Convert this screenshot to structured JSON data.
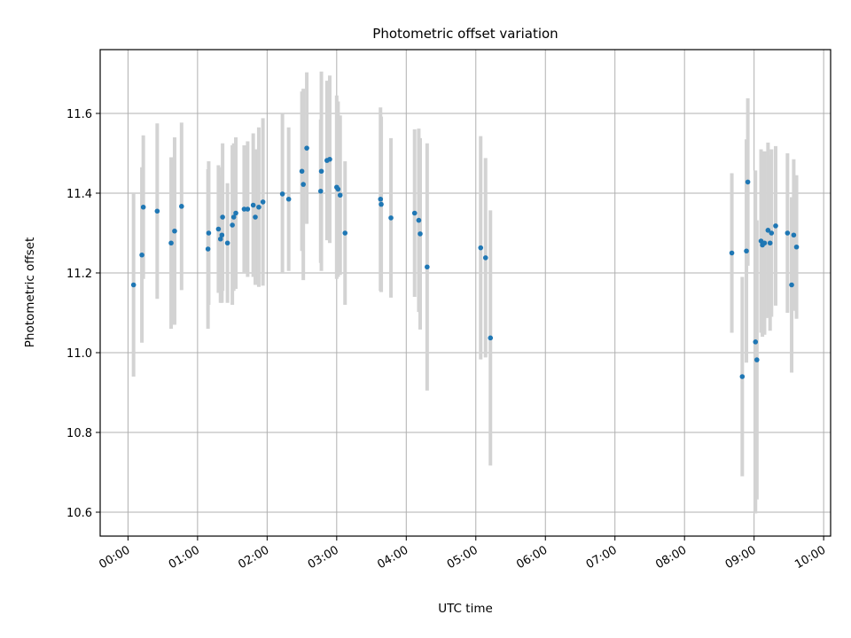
{
  "chart_data": {
    "type": "scatter",
    "title": "Photometric offset variation",
    "xlabel": "UTC time",
    "ylabel": "Photometric offset",
    "xlim_hours": [
      -0.4,
      10.1
    ],
    "ylim": [
      10.54,
      11.76
    ],
    "grid": true,
    "colors": {
      "point": "#1f77b4",
      "errorbar": "#d3d3d3",
      "grid": "#b0b0b0",
      "axis": "#000000"
    },
    "x_ticks": [
      {
        "value": 0,
        "label": "00:00"
      },
      {
        "value": 1,
        "label": "01:00"
      },
      {
        "value": 2,
        "label": "02:00"
      },
      {
        "value": 3,
        "label": "03:00"
      },
      {
        "value": 4,
        "label": "04:00"
      },
      {
        "value": 5,
        "label": "05:00"
      },
      {
        "value": 6,
        "label": "06:00"
      },
      {
        "value": 7,
        "label": "07:00"
      },
      {
        "value": 8,
        "label": "08:00"
      },
      {
        "value": 9,
        "label": "09:00"
      },
      {
        "value": 10,
        "label": "10:00"
      }
    ],
    "y_ticks": [
      {
        "value": 10.6,
        "label": "10.6"
      },
      {
        "value": 10.8,
        "label": "10.8"
      },
      {
        "value": 11.0,
        "label": "11.0"
      },
      {
        "value": 11.2,
        "label": "11.2"
      },
      {
        "value": 11.4,
        "label": "11.4"
      },
      {
        "value": 11.6,
        "label": "11.6"
      }
    ],
    "series": [
      {
        "name": "offset",
        "x_hours": [
          0.08,
          0.2,
          0.22,
          0.42,
          0.62,
          0.67,
          0.77,
          1.15,
          1.16,
          1.3,
          1.33,
          1.35,
          1.36,
          1.43,
          1.5,
          1.52,
          1.55,
          1.67,
          1.72,
          1.8,
          1.83,
          1.88,
          1.94,
          2.22,
          2.31,
          2.5,
          2.52,
          2.57,
          2.77,
          2.78,
          2.86,
          2.9,
          3.0,
          3.02,
          3.05,
          3.12,
          3.63,
          3.64,
          3.78,
          4.12,
          4.18,
          4.2,
          4.3,
          5.07,
          5.14,
          5.21,
          8.68,
          8.83,
          8.89,
          8.91,
          9.02,
          9.04,
          9.1,
          9.12,
          9.15,
          9.2,
          9.23,
          9.25,
          9.31,
          9.48,
          9.54,
          9.57,
          9.61
        ],
        "y": [
          11.17,
          11.245,
          11.365,
          11.355,
          11.275,
          11.305,
          11.367,
          11.26,
          11.3,
          11.31,
          11.285,
          11.295,
          11.34,
          11.275,
          11.32,
          11.34,
          11.35,
          11.36,
          11.36,
          11.37,
          11.34,
          11.365,
          11.378,
          11.398,
          11.385,
          11.455,
          11.422,
          11.513,
          11.405,
          11.455,
          11.482,
          11.485,
          11.415,
          11.41,
          11.395,
          11.3,
          11.385,
          11.372,
          11.338,
          11.35,
          11.332,
          11.298,
          11.215,
          11.263,
          11.238,
          11.037,
          11.25,
          10.94,
          11.255,
          11.428,
          11.027,
          10.982,
          11.28,
          11.27,
          11.275,
          11.307,
          11.275,
          11.3,
          11.318,
          11.3,
          11.17,
          11.295,
          11.265
        ],
        "yerr": [
          0.23,
          0.22,
          0.18,
          0.22,
          0.215,
          0.235,
          0.21,
          0.2,
          0.18,
          0.16,
          0.16,
          0.17,
          0.185,
          0.15,
          0.2,
          0.185,
          0.19,
          0.16,
          0.17,
          0.18,
          0.17,
          0.2,
          0.21,
          0.2,
          0.18,
          0.2,
          0.24,
          0.19,
          0.18,
          0.25,
          0.2,
          0.21,
          0.23,
          0.22,
          0.2,
          0.18,
          0.23,
          0.22,
          0.2,
          0.21,
          0.23,
          0.24,
          0.31,
          0.28,
          0.25,
          0.32,
          0.2,
          0.25,
          0.28,
          0.21,
          0.43,
          0.35,
          0.23,
          0.23,
          0.23,
          0.22,
          0.22,
          0.21,
          0.2,
          0.2,
          0.22,
          0.19,
          0.18
        ]
      }
    ]
  }
}
